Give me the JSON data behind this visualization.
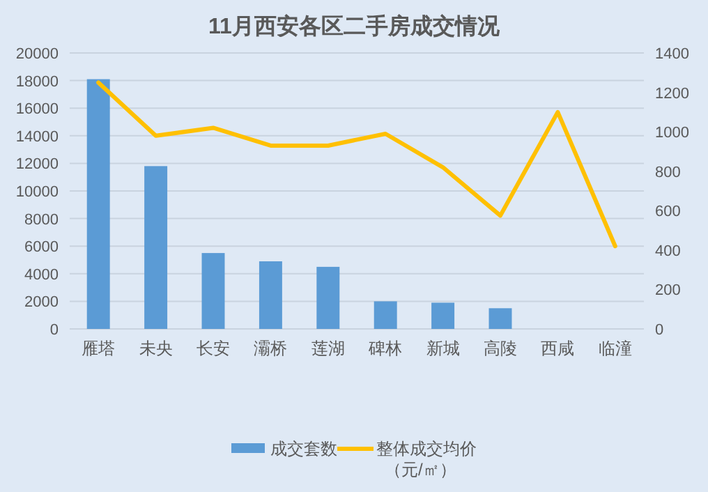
{
  "chart_data": {
    "type": "bar",
    "title": "11月西安各区二手房成交情况",
    "categories": [
      "雁塔",
      "未央",
      "长安",
      "灞桥",
      "莲湖",
      "碑林",
      "新城",
      "高陵",
      "西咸",
      "临潼"
    ],
    "series": [
      {
        "name": "成交套数",
        "color": "#5b9bd5",
        "values": [
          18100,
          11800,
          5500,
          4900,
          4500,
          2000,
          1900,
          1500,
          null,
          null
        ]
      },
      {
        "name": "整体成交均价（元/㎡）",
        "type": "line",
        "axis": "y2",
        "color": "#ffc000",
        "values": [
          1250,
          980,
          1020,
          930,
          930,
          990,
          820,
          575,
          1100,
          420
        ]
      }
    ],
    "ylim": [
      0,
      20000
    ],
    "yticks": [
      0,
      2000,
      4000,
      6000,
      8000,
      10000,
      12000,
      14000,
      16000,
      18000,
      20000
    ],
    "y2lim": [
      0,
      1400
    ],
    "y2ticks": [
      0,
      200,
      400,
      600,
      800,
      1000,
      1200,
      1400
    ],
    "grid": "y",
    "legend": "bottom"
  }
}
